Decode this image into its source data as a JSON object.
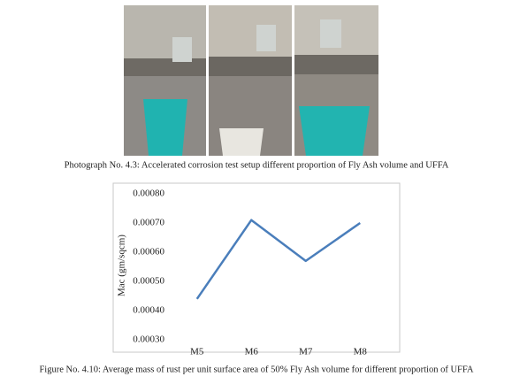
{
  "photo_caption": "Photograph No. 4.3: Accelerated corrosion test setup different proportion of Fly Ash volume and UFFA",
  "figure_caption": "Figure No. 4.10: Average mass of rust per unit surface area of 50% Fly Ash volume for different proportion of UFFA",
  "chart_data": {
    "type": "line",
    "y_label": "Mac (gm/sqcm)",
    "categories": [
      "M5",
      "M6",
      "M7",
      "M8"
    ],
    "values": [
      0.00044,
      0.00071,
      0.00057,
      0.0007
    ],
    "color": "#4a7ebb",
    "ylim": [
      0.0003,
      0.0008
    ],
    "yticks": [
      {
        "value": 0.0003,
        "label": "0.00030"
      },
      {
        "value": 0.0004,
        "label": "0.00040"
      },
      {
        "value": 0.0005,
        "label": "0.00050"
      },
      {
        "value": 0.0006,
        "label": "0.00060"
      },
      {
        "value": 0.0007,
        "label": "0.00070"
      },
      {
        "value": 0.0008,
        "label": "0.00080"
      }
    ],
    "grid": false
  }
}
